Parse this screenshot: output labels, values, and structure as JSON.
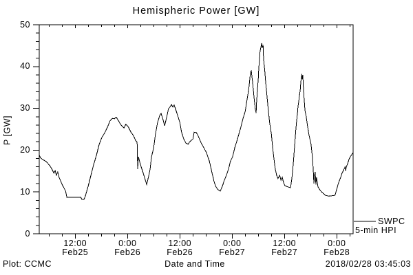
{
  "title": "Hemispheric Power [GW]",
  "colors": {
    "background": "#ffffff",
    "foreground": "#000000",
    "line": "#000000"
  },
  "y_axis": {
    "label": "P [GW]",
    "range": [
      0,
      50
    ],
    "major_ticks": [
      0,
      10,
      20,
      30,
      40,
      50
    ],
    "minor_step": 2
  },
  "x_axis": {
    "label": "Date and Time",
    "range_hours": [
      3.75,
      75.75
    ],
    "minor_step_hours": 3,
    "major_ticks": [
      {
        "time": "12:00",
        "date": "Feb25",
        "t": 12
      },
      {
        "time": "0:00",
        "date": "Feb26",
        "t": 24
      },
      {
        "time": "12:00",
        "date": "Feb26",
        "t": 36
      },
      {
        "time": "0:00",
        "date": "Feb27",
        "t": 48
      },
      {
        "time": "12:00",
        "date": "Feb27",
        "t": 60
      },
      {
        "time": "0:00",
        "date": "Feb28",
        "t": 72
      }
    ]
  },
  "legend": {
    "source": "SWPC",
    "series": "5-min HPI"
  },
  "footer": {
    "credit": "Plot: CCMC",
    "timestamp": "2018/02/28 03:45:03"
  },
  "chart_data": {
    "type": "line",
    "title": "Hemispheric Power [GW]",
    "xlabel": "Date and Time",
    "ylabel": "P [GW]",
    "x_unit": "hours since 2018-02-25 00:00 UT",
    "xlim": [
      3.75,
      75.75
    ],
    "ylim": [
      0,
      50
    ],
    "grid": false,
    "legend_position": "right-outside-bottom",
    "series": [
      {
        "name": "SWPC 5-min HPI",
        "points": [
          [
            3.75,
            18.8
          ],
          [
            4.1,
            18.1
          ],
          [
            4.5,
            17.8
          ],
          [
            5.3,
            17.3
          ],
          [
            6.1,
            16.4
          ],
          [
            6.6,
            15.6
          ],
          [
            7.1,
            14.5
          ],
          [
            7.4,
            15.1
          ],
          [
            7.7,
            14.0
          ],
          [
            8.0,
            14.8
          ],
          [
            8.3,
            13.5
          ],
          [
            9.0,
            11.8
          ],
          [
            9.8,
            10.2
          ],
          [
            10.1,
            8.7
          ],
          [
            13.3,
            8.7
          ],
          [
            13.5,
            8.2
          ],
          [
            14.0,
            8.2
          ],
          [
            14.3,
            8.9
          ],
          [
            15.0,
            11.5
          ],
          [
            15.6,
            14.0
          ],
          [
            16.2,
            16.4
          ],
          [
            16.9,
            18.9
          ],
          [
            17.5,
            21.4
          ],
          [
            18.1,
            23.0
          ],
          [
            18.8,
            24.2
          ],
          [
            19.4,
            25.5
          ],
          [
            20.0,
            27.0
          ],
          [
            20.5,
            27.6
          ],
          [
            21.0,
            27.5
          ],
          [
            21.4,
            27.9
          ],
          [
            21.9,
            27.1
          ],
          [
            22.5,
            26.0
          ],
          [
            23.2,
            25.3
          ],
          [
            23.6,
            26.2
          ],
          [
            24.1,
            25.7
          ],
          [
            24.8,
            24.3
          ],
          [
            25.4,
            23.4
          ],
          [
            25.9,
            22.2
          ],
          [
            26.2,
            21.9
          ],
          [
            26.33,
            15.5
          ],
          [
            26.5,
            18.4
          ],
          [
            27.0,
            16.4
          ],
          [
            27.6,
            14.5
          ],
          [
            28.1,
            12.8
          ],
          [
            28.4,
            11.8
          ],
          [
            28.9,
            14.0
          ],
          [
            29.2,
            15.6
          ],
          [
            29.5,
            18.4
          ],
          [
            30.0,
            20.6
          ],
          [
            30.4,
            23.8
          ],
          [
            30.9,
            26.6
          ],
          [
            31.4,
            28.3
          ],
          [
            31.7,
            28.8
          ],
          [
            32.2,
            27.1
          ],
          [
            32.5,
            25.8
          ],
          [
            33.0,
            28.0
          ],
          [
            33.4,
            29.9
          ],
          [
            33.8,
            30.4
          ],
          [
            34.1,
            30.9
          ],
          [
            34.4,
            30.3
          ],
          [
            34.7,
            30.8
          ],
          [
            35.0,
            29.9
          ],
          [
            35.5,
            28.3
          ],
          [
            36.0,
            26.6
          ],
          [
            36.4,
            24.3
          ],
          [
            36.9,
            22.7
          ],
          [
            37.4,
            21.7
          ],
          [
            37.9,
            21.4
          ],
          [
            38.2,
            21.9
          ],
          [
            38.7,
            22.4
          ],
          [
            39.0,
            22.7
          ],
          [
            39.3,
            24.3
          ],
          [
            39.8,
            24.2
          ],
          [
            40.2,
            23.4
          ],
          [
            40.9,
            21.7
          ],
          [
            41.5,
            20.6
          ],
          [
            42.1,
            19.4
          ],
          [
            42.8,
            17.3
          ],
          [
            43.4,
            14.5
          ],
          [
            43.9,
            12.3
          ],
          [
            44.3,
            11.2
          ],
          [
            44.8,
            10.5
          ],
          [
            45.3,
            10.2
          ],
          [
            45.8,
            11.5
          ],
          [
            46.2,
            12.8
          ],
          [
            46.7,
            14.0
          ],
          [
            47.2,
            15.6
          ],
          [
            47.6,
            17.3
          ],
          [
            48.1,
            18.4
          ],
          [
            48.6,
            20.6
          ],
          [
            49.1,
            22.2
          ],
          [
            49.5,
            23.7
          ],
          [
            50.0,
            25.5
          ],
          [
            50.5,
            27.6
          ],
          [
            51.0,
            29.3
          ],
          [
            51.3,
            31.3
          ],
          [
            51.6,
            33.2
          ],
          [
            51.9,
            35.4
          ],
          [
            52.1,
            37.5
          ],
          [
            52.2,
            38.7
          ],
          [
            52.4,
            39.0
          ],
          [
            52.7,
            36.2
          ],
          [
            53.0,
            32.9
          ],
          [
            53.3,
            29.9
          ],
          [
            53.5,
            28.9
          ],
          [
            53.6,
            31.3
          ],
          [
            53.8,
            34.5
          ],
          [
            54.0,
            37.3
          ],
          [
            54.1,
            39.5
          ],
          [
            54.3,
            41.9
          ],
          [
            54.4,
            43.6
          ],
          [
            54.6,
            44.7
          ],
          [
            54.8,
            45.6
          ],
          [
            54.9,
            44.4
          ],
          [
            55.1,
            45.2
          ],
          [
            55.2,
            41.9
          ],
          [
            55.5,
            38.7
          ],
          [
            55.7,
            36.2
          ],
          [
            56.0,
            32.9
          ],
          [
            56.3,
            29.6
          ],
          [
            56.6,
            26.6
          ],
          [
            57.0,
            23.8
          ],
          [
            57.3,
            20.6
          ],
          [
            57.6,
            17.8
          ],
          [
            57.9,
            15.5
          ],
          [
            58.2,
            14.0
          ],
          [
            58.5,
            13.2
          ],
          [
            58.9,
            14.0
          ],
          [
            59.2,
            12.8
          ],
          [
            59.5,
            13.5
          ],
          [
            59.8,
            12.2
          ],
          [
            60.1,
            11.5
          ],
          [
            60.8,
            11.2
          ],
          [
            61.4,
            11.0
          ],
          [
            61.7,
            13.2
          ],
          [
            62.0,
            16.4
          ],
          [
            62.3,
            20.6
          ],
          [
            62.6,
            24.7
          ],
          [
            62.8,
            27.1
          ],
          [
            63.0,
            29.1
          ],
          [
            63.1,
            30.4
          ],
          [
            63.3,
            31.7
          ],
          [
            63.4,
            32.9
          ],
          [
            63.6,
            34.2
          ],
          [
            63.75,
            36.2
          ],
          [
            63.9,
            37.5
          ],
          [
            64.0,
            38.2
          ],
          [
            64.1,
            37.0
          ],
          [
            64.2,
            38.0
          ],
          [
            64.35,
            35.0
          ],
          [
            64.5,
            32.4
          ],
          [
            64.7,
            29.6
          ],
          [
            65.0,
            28.0
          ],
          [
            65.3,
            25.8
          ],
          [
            65.6,
            23.8
          ],
          [
            66.1,
            21.4
          ],
          [
            66.4,
            18.4
          ],
          [
            66.6,
            15.6
          ],
          [
            66.75,
            12.0
          ],
          [
            66.9,
            14.0
          ],
          [
            67.05,
            14.8
          ],
          [
            67.2,
            11.8
          ],
          [
            67.35,
            13.5
          ],
          [
            67.7,
            11.2
          ],
          [
            68.2,
            10.4
          ],
          [
            68.6,
            9.9
          ],
          [
            69.1,
            9.5
          ],
          [
            69.4,
            9.2
          ],
          [
            70.2,
            9.0
          ],
          [
            71.6,
            9.2
          ],
          [
            72.0,
            10.7
          ],
          [
            72.3,
            11.8
          ],
          [
            72.6,
            12.7
          ],
          [
            72.9,
            13.5
          ],
          [
            73.2,
            14.5
          ],
          [
            73.5,
            15.1
          ],
          [
            73.9,
            16.0
          ],
          [
            74.05,
            15.1
          ],
          [
            74.2,
            16.0
          ],
          [
            74.5,
            16.8
          ],
          [
            74.8,
            17.8
          ],
          [
            75.1,
            18.4
          ],
          [
            75.4,
            18.9
          ],
          [
            75.75,
            19.4
          ]
        ]
      }
    ]
  }
}
